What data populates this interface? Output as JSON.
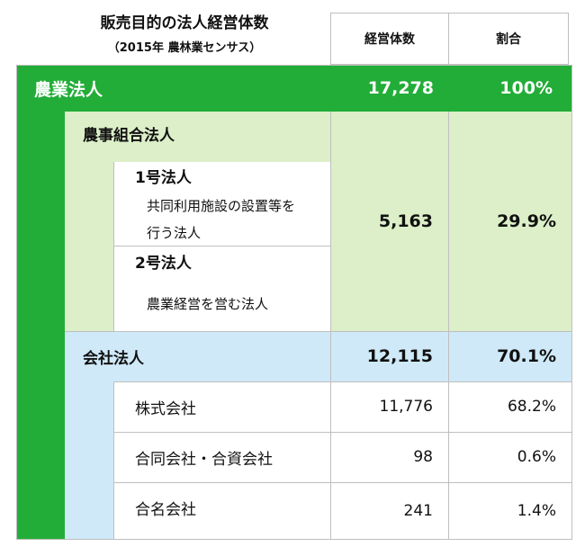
{
  "header": {
    "title": "販売目的の法人経営体数",
    "subtitle": "（2015年 農林業センサス）",
    "col_count": "経営体数",
    "col_ratio": "割合"
  },
  "rows": {
    "farm_corp": {
      "label": "農業法人",
      "count": "17,278",
      "ratio": "100%"
    },
    "coop": {
      "label": "農事組合法人",
      "count": "5,163",
      "ratio": "29.9%"
    },
    "type1": {
      "label": "1号法人",
      "desc_line1": "共同利用施設の設置等を",
      "desc_line2": "行う法人"
    },
    "type2": {
      "label": "2号法人",
      "desc": "農業経営を営む法人"
    },
    "company": {
      "label": "会社法人",
      "count": "12,115",
      "ratio": "70.1%"
    },
    "kabushiki": {
      "label": "株式会社",
      "count": "11,776",
      "ratio": "68.2%"
    },
    "godo": {
      "label": "合同会社・合資会社",
      "count": "98",
      "ratio": "0.6%"
    },
    "gomei": {
      "label": "合名会社",
      "count": "241",
      "ratio": "1.4%"
    }
  },
  "colors": {
    "green": "#22ad38",
    "light_green": "#dcefc8",
    "light_blue": "#cfe9f8",
    "border": "#bfbfbf"
  }
}
